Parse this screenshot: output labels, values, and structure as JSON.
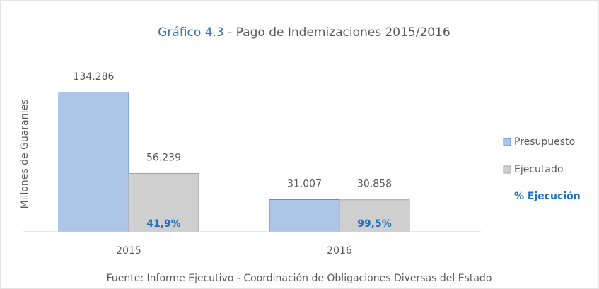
{
  "chart_data": {
    "type": "bar",
    "title_number": "Gráfico 4.3",
    "title": " - Pago de Indemizaciones 2015/2016",
    "y_label": "Millones de Guaranies",
    "source": "Fuente: Informe Ejecutivo - Coordinación de Obligaciones Diversas del Estado",
    "categories": [
      "2015",
      "2016"
    ],
    "series": [
      {
        "name": "Presupuesto",
        "color": "#adc6e8",
        "border": "#5b8fd0",
        "values": [
          134286,
          31007
        ],
        "value_labels": [
          "134.286",
          "31.007"
        ]
      },
      {
        "name": "Ejecutado",
        "color": "#cfcfcf",
        "border": "#a3a3a3",
        "values": [
          56239,
          30858
        ],
        "value_labels": [
          "56.239",
          "30.858"
        ]
      }
    ],
    "execution": {
      "name": "% Ejecución",
      "color": "#1f6fc0",
      "values": [
        41.9,
        99.5
      ],
      "value_labels": [
        "41,9%",
        "99,5%"
      ]
    },
    "ylim": [
      0,
      134286
    ],
    "legend": "right"
  }
}
